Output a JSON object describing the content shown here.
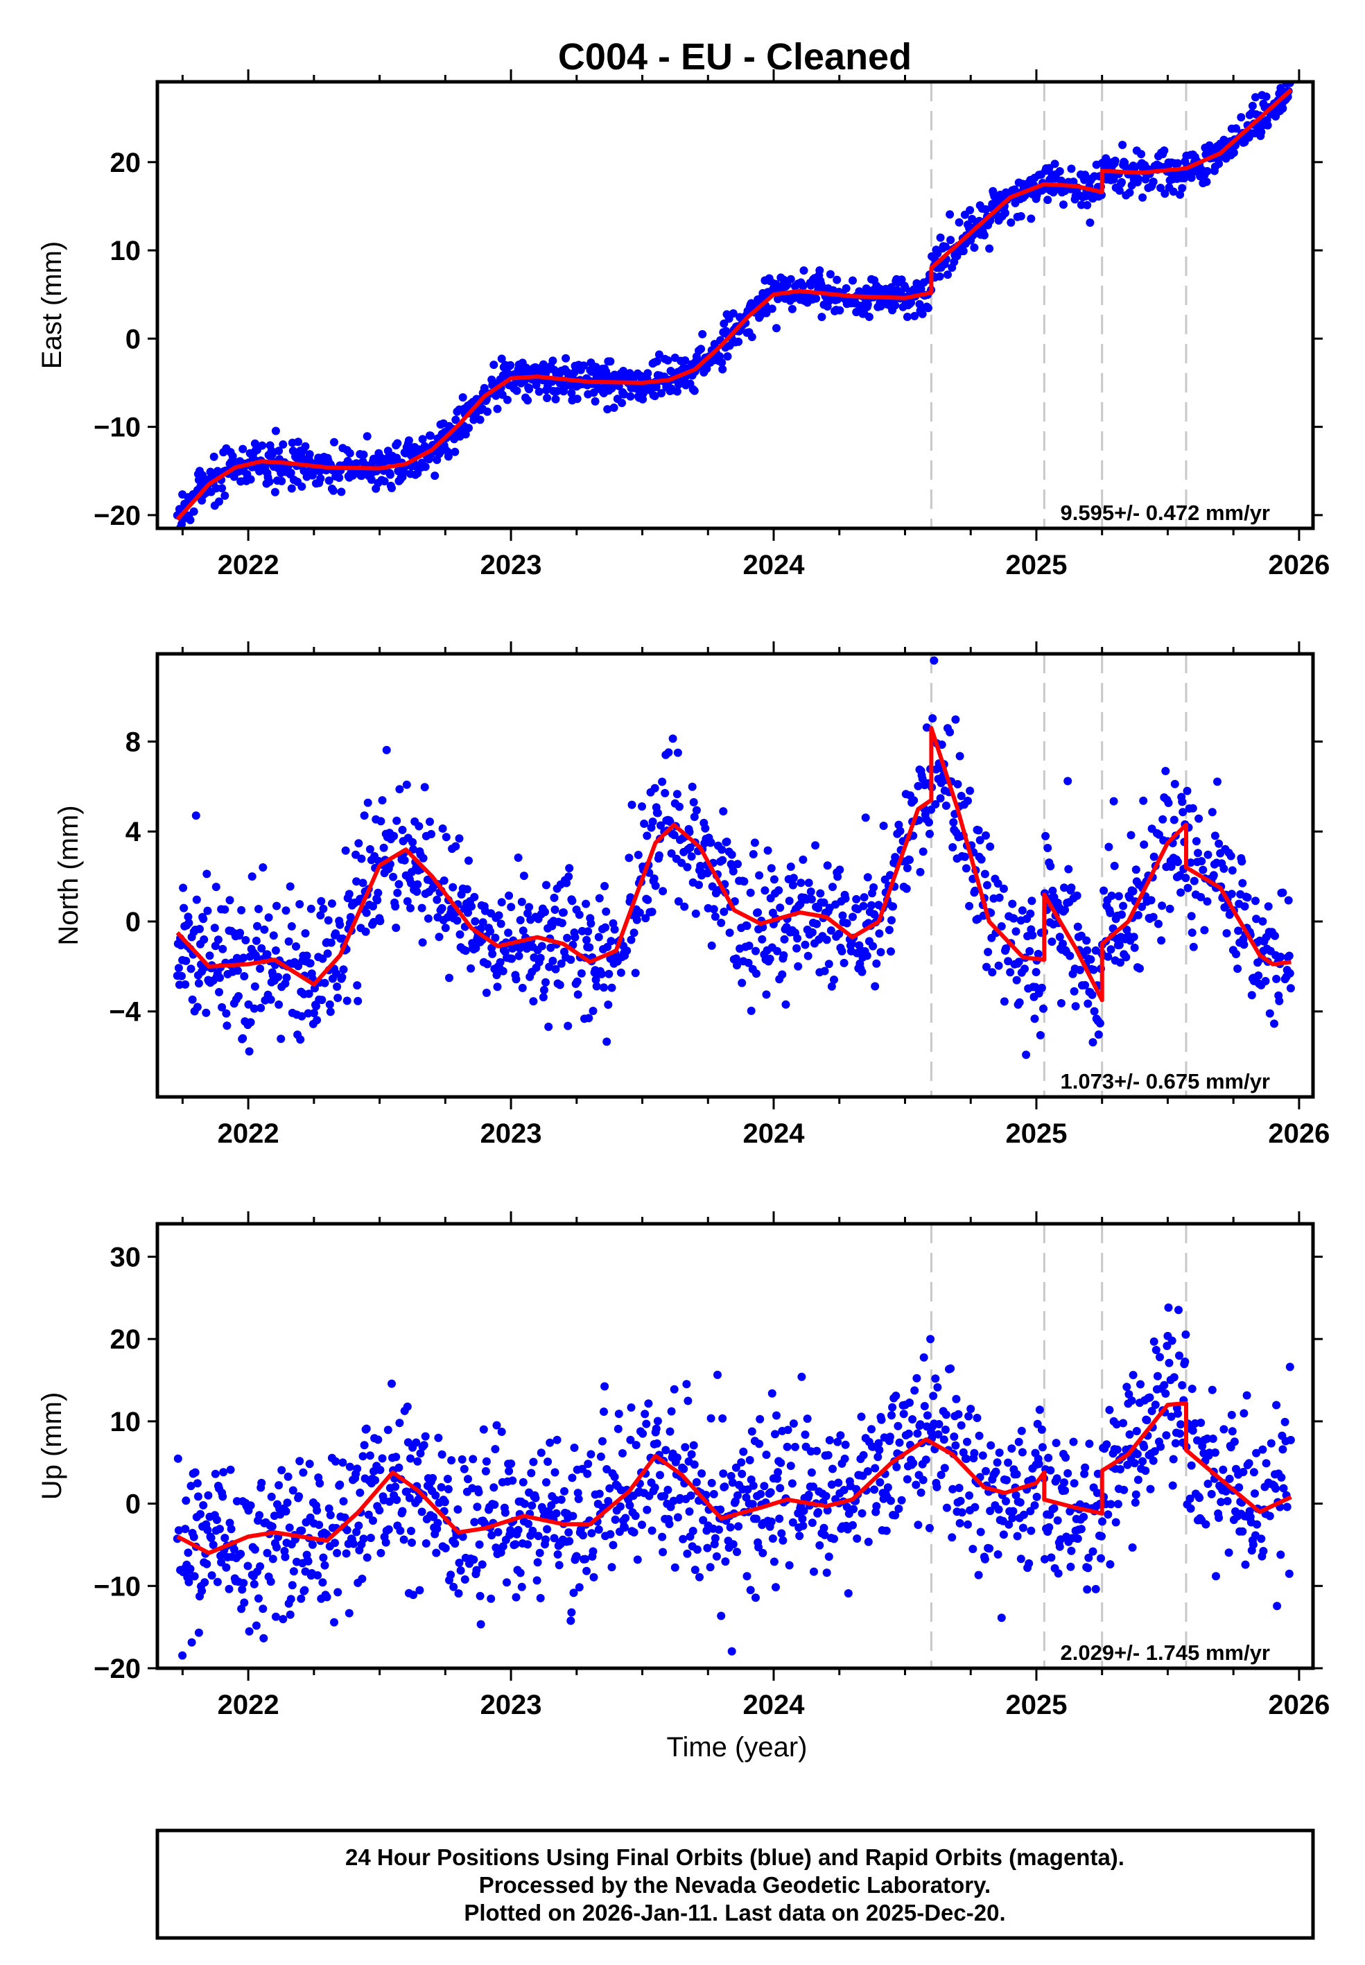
{
  "title": "C004  - EU - Cleaned",
  "footer": {
    "lines": [
      "24 Hour Positions Using Final Orbits (blue) and Rapid Orbits (magenta).",
      "Processed by the Nevada Geodetic Laboratory.",
      "Plotted on 2026-Jan-11. Last data on 2025-Dec-20."
    ]
  },
  "colors": {
    "points": "#0000ff",
    "fit": "#ff0000",
    "steps": "#c8c8c8",
    "frame": "#000000"
  },
  "chart_data": [
    {
      "type": "scatter",
      "component": "East",
      "ylabel": "East (mm)",
      "xlabel": "",
      "xlim": [
        2021.654,
        2026.053
      ],
      "ylim": [
        -21.5,
        29.1
      ],
      "xticks": [
        2022,
        2023,
        2024,
        2025,
        2026
      ],
      "xtick_labels": [
        "2022",
        "2023",
        "2024",
        "2025",
        "2026"
      ],
      "yticks": [
        -20,
        -10,
        0,
        10,
        20
      ],
      "ytick_labels": [
        "−20",
        "−10",
        "0",
        "10",
        "20"
      ],
      "rate_label": "9.595+/- 0.472 mm/yr",
      "step_epochs": [
        2024.6,
        2025.03,
        2025.25,
        2025.57
      ],
      "noise_sd": 1.2,
      "fit": [
        [
          2021.73,
          -20.5
        ],
        [
          2021.85,
          -16.5
        ],
        [
          2021.95,
          -14.6
        ],
        [
          2022.05,
          -13.9
        ],
        [
          2022.15,
          -14.1
        ],
        [
          2022.3,
          -14.6
        ],
        [
          2022.5,
          -14.7
        ],
        [
          2022.6,
          -14.2
        ],
        [
          2022.7,
          -12.6
        ],
        [
          2022.8,
          -9.8
        ],
        [
          2022.9,
          -6.5
        ],
        [
          2023.0,
          -4.5
        ],
        [
          2023.1,
          -4.3
        ],
        [
          2023.3,
          -4.9
        ],
        [
          2023.5,
          -5.0
        ],
        [
          2023.6,
          -4.7
        ],
        [
          2023.7,
          -3.5
        ],
        [
          2023.8,
          -0.8
        ],
        [
          2023.9,
          2.4
        ],
        [
          2024.0,
          5.0
        ],
        [
          2024.1,
          5.4
        ],
        [
          2024.3,
          4.8
        ],
        [
          2024.5,
          4.6
        ],
        [
          2024.6,
          5.2
        ],
        [
          2024.6,
          8.0
        ],
        [
          2024.75,
          12.0
        ],
        [
          2024.9,
          16.0
        ],
        [
          2025.03,
          17.5
        ],
        [
          2025.15,
          17.3
        ],
        [
          2025.25,
          16.6
        ],
        [
          2025.25,
          19.0
        ],
        [
          2025.4,
          18.8
        ],
        [
          2025.57,
          19.3
        ],
        [
          2025.7,
          21.0
        ],
        [
          2025.85,
          25.0
        ],
        [
          2025.97,
          28.2
        ]
      ]
    },
    {
      "type": "scatter",
      "component": "North",
      "ylabel": "North (mm)",
      "xlabel": "",
      "xlim": [
        2021.654,
        2026.053
      ],
      "ylim": [
        -7.8,
        11.9
      ],
      "xticks": [
        2022,
        2023,
        2024,
        2025,
        2026
      ],
      "xtick_labels": [
        "2022",
        "2023",
        "2024",
        "2025",
        "2026"
      ],
      "yticks": [
        -4,
        0,
        4,
        8
      ],
      "ytick_labels": [
        "−4",
        "0",
        "4",
        "8"
      ],
      "rate_label": "1.073+/- 0.675 mm/yr",
      "step_epochs": [
        2024.6,
        2025.03,
        2025.25,
        2025.57
      ],
      "noise_sd": 1.6,
      "fit": [
        [
          2021.73,
          -0.5
        ],
        [
          2021.85,
          -2.0
        ],
        [
          2022.0,
          -1.9
        ],
        [
          2022.1,
          -1.7
        ],
        [
          2022.25,
          -2.8
        ],
        [
          2022.35,
          -1.5
        ],
        [
          2022.5,
          2.5
        ],
        [
          2022.6,
          3.2
        ],
        [
          2022.7,
          2.0
        ],
        [
          2022.85,
          -0.3
        ],
        [
          2022.95,
          -1.1
        ],
        [
          2023.1,
          -0.7
        ],
        [
          2023.2,
          -1.0
        ],
        [
          2023.3,
          -1.8
        ],
        [
          2023.4,
          -1.3
        ],
        [
          2023.55,
          3.5
        ],
        [
          2023.62,
          4.3
        ],
        [
          2023.72,
          3.3
        ],
        [
          2023.85,
          0.5
        ],
        [
          2023.95,
          -0.1
        ],
        [
          2024.1,
          0.4
        ],
        [
          2024.2,
          0.2
        ],
        [
          2024.3,
          -0.7
        ],
        [
          2024.4,
          0.0
        ],
        [
          2024.55,
          5.0
        ],
        [
          2024.6,
          5.4
        ],
        [
          2024.6,
          8.6
        ],
        [
          2024.7,
          5.0
        ],
        [
          2024.82,
          0.0
        ],
        [
          2024.95,
          -1.6
        ],
        [
          2025.03,
          -1.7
        ],
        [
          2025.03,
          1.2
        ],
        [
          2025.15,
          -1.2
        ],
        [
          2025.25,
          -3.5
        ],
        [
          2025.25,
          -1.0
        ],
        [
          2025.35,
          0.0
        ],
        [
          2025.5,
          3.5
        ],
        [
          2025.57,
          4.3
        ],
        [
          2025.57,
          2.4
        ],
        [
          2025.7,
          1.5
        ],
        [
          2025.85,
          -1.5
        ],
        [
          2025.9,
          -1.9
        ],
        [
          2025.97,
          -1.8
        ]
      ]
    },
    {
      "type": "scatter",
      "component": "Up",
      "ylabel": "Up (mm)",
      "xlabel": "Time (year)",
      "xlim": [
        2021.654,
        2026.053
      ],
      "ylim": [
        -20,
        34
      ],
      "xticks": [
        2022,
        2023,
        2024,
        2025,
        2026
      ],
      "xtick_labels": [
        "2022",
        "2023",
        "2024",
        "2025",
        "2026"
      ],
      "yticks": [
        -20,
        -10,
        0,
        10,
        20,
        30
      ],
      "ytick_labels": [
        "−20",
        "−10",
        "0",
        "10",
        "20",
        "30"
      ],
      "rate_label": "2.029+/- 1.745 mm/yr",
      "step_epochs": [
        2024.6,
        2025.03,
        2025.25,
        2025.57
      ],
      "noise_sd": 5.0,
      "fit": [
        [
          2021.73,
          -4.0
        ],
        [
          2021.85,
          -6.0
        ],
        [
          2022.0,
          -4.0
        ],
        [
          2022.1,
          -3.5
        ],
        [
          2022.2,
          -4.0
        ],
        [
          2022.3,
          -4.5
        ],
        [
          2022.42,
          -1.0
        ],
        [
          2022.55,
          3.8
        ],
        [
          2022.65,
          1.5
        ],
        [
          2022.8,
          -3.5
        ],
        [
          2022.9,
          -3.0
        ],
        [
          2023.05,
          -1.5
        ],
        [
          2023.2,
          -2.5
        ],
        [
          2023.3,
          -2.5
        ],
        [
          2023.45,
          1.5
        ],
        [
          2023.55,
          5.8
        ],
        [
          2023.65,
          3.5
        ],
        [
          2023.8,
          -1.8
        ],
        [
          2023.95,
          -0.5
        ],
        [
          2024.05,
          0.5
        ],
        [
          2024.2,
          -0.3
        ],
        [
          2024.3,
          0.5
        ],
        [
          2024.45,
          5.0
        ],
        [
          2024.58,
          7.8
        ],
        [
          2024.68,
          6.0
        ],
        [
          2024.8,
          2.0
        ],
        [
          2024.88,
          1.3
        ],
        [
          2025.0,
          2.5
        ],
        [
          2025.03,
          3.8
        ],
        [
          2025.03,
          0.5
        ],
        [
          2025.15,
          -0.5
        ],
        [
          2025.25,
          -1.2
        ],
        [
          2025.25,
          4.0
        ],
        [
          2025.35,
          6.0
        ],
        [
          2025.5,
          12.0
        ],
        [
          2025.57,
          12.2
        ],
        [
          2025.57,
          6.5
        ],
        [
          2025.7,
          3.0
        ],
        [
          2025.85,
          -1.0
        ],
        [
          2025.97,
          0.8
        ]
      ]
    }
  ]
}
